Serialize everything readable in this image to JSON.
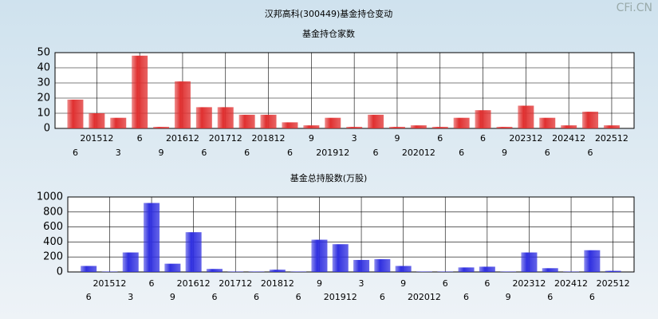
{
  "title": "汉邦高科(300449)基金持仓变动",
  "watermark": "CFi.CN",
  "chart_data": [
    {
      "type": "bar",
      "title": "基金持仓家数",
      "categories": [
        "6",
        "201512",
        "3",
        "6",
        "9",
        "201612",
        "6",
        "201712",
        "6",
        "201812",
        "6",
        "9",
        "201912",
        "3",
        "6",
        "9",
        "202012",
        "6",
        "6",
        "6",
        "9",
        "202312",
        "6",
        "202412",
        "6",
        "202512"
      ],
      "values": [
        19,
        10,
        7,
        48,
        1,
        31,
        14,
        14,
        9,
        9,
        4,
        2,
        7,
        1,
        9,
        1,
        2,
        1,
        7,
        12,
        1,
        15,
        7,
        2,
        11,
        2
      ],
      "color": "#e03030",
      "ylim": [
        0,
        50
      ],
      "yticks": [
        0,
        10,
        20,
        30,
        40,
        50
      ],
      "grid": true
    },
    {
      "type": "bar",
      "title": "基金总持股数(万股)",
      "categories": [
        "6",
        "201512",
        "3",
        "6",
        "9",
        "201612",
        "6",
        "201712",
        "6",
        "201812",
        "6",
        "9",
        "201912",
        "3",
        "6",
        "9",
        "202012",
        "6",
        "6",
        "6",
        "9",
        "202312",
        "6",
        "202412",
        "6",
        "202512"
      ],
      "values": [
        80,
        5,
        260,
        920,
        110,
        530,
        40,
        5,
        5,
        30,
        5,
        430,
        370,
        160,
        170,
        80,
        5,
        5,
        60,
        70,
        5,
        260,
        50,
        5,
        290,
        15
      ],
      "color": "#3030e0",
      "ylim": [
        0,
        1000
      ],
      "yticks": [
        0,
        200,
        400,
        600,
        800,
        1000
      ],
      "grid": true
    }
  ]
}
